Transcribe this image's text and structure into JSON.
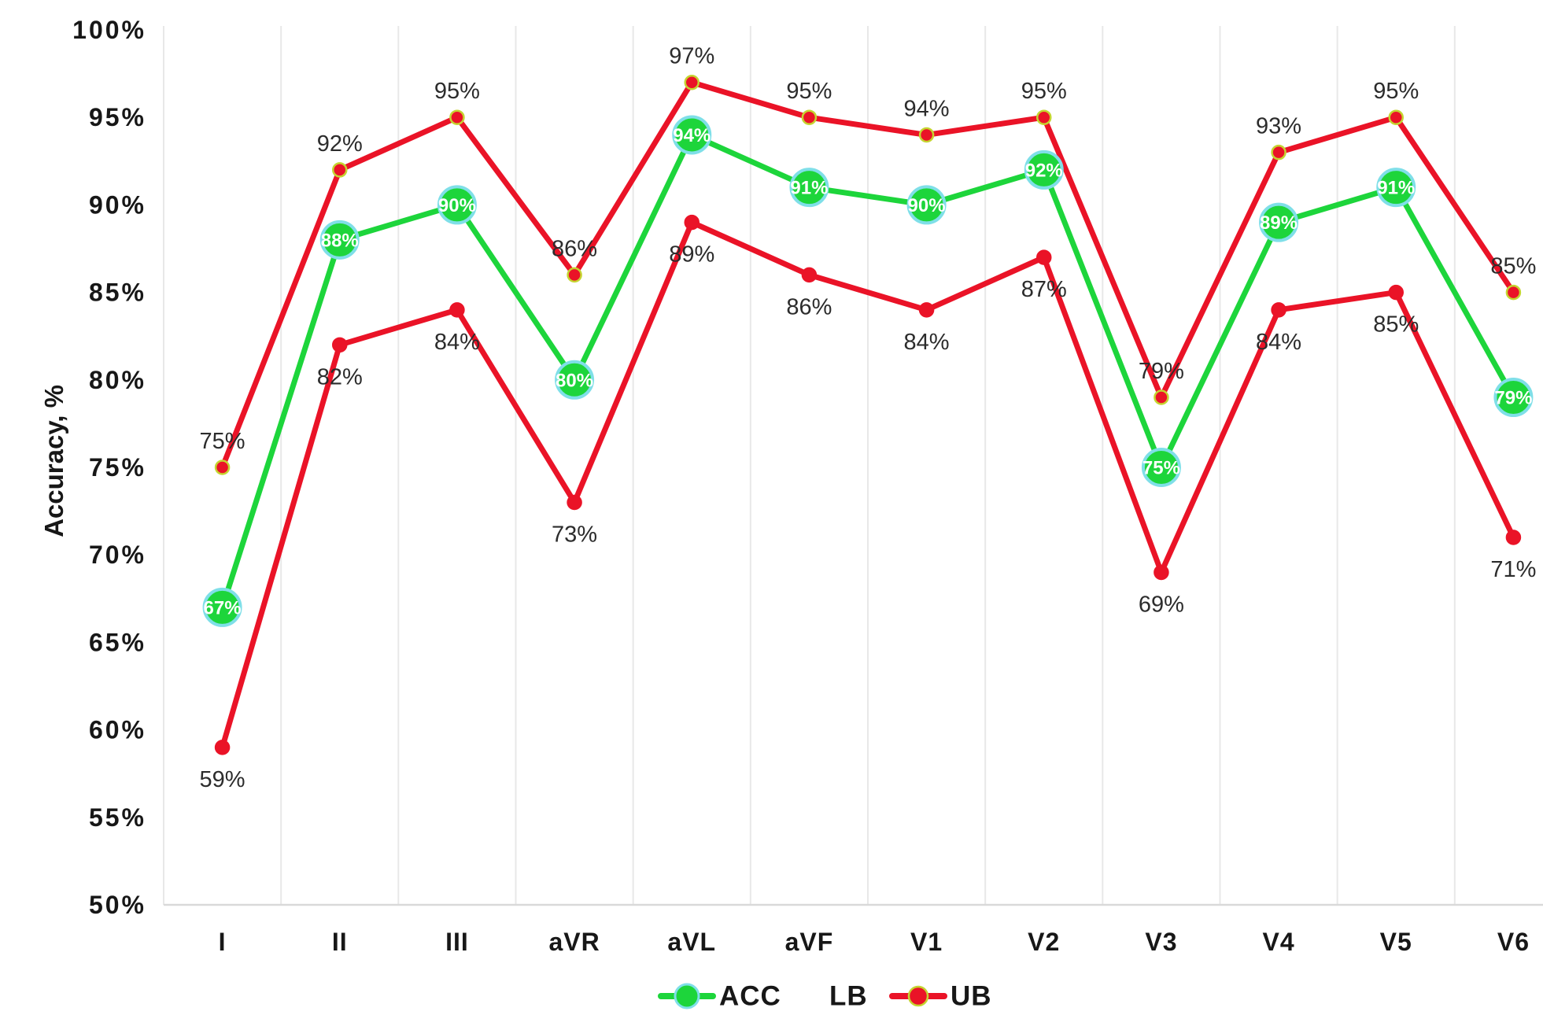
{
  "chart_data": {
    "type": "line",
    "title": "",
    "xlabel": "",
    "ylabel": "Accuracy, %",
    "ylim": [
      50,
      100
    ],
    "ytick_step": 5,
    "ytick_values": [
      50,
      55,
      60,
      65,
      70,
      75,
      80,
      85,
      90,
      95,
      100
    ],
    "ytick_labels": [
      "50%",
      "55%",
      "60%",
      "65%",
      "70%",
      "75%",
      "80%",
      "85%",
      "90%",
      "95%",
      "100%"
    ],
    "grid": "vertical-only",
    "legend_position": "bottom",
    "categories": [
      "I",
      "II",
      "III",
      "aVR",
      "aVL",
      "aVF",
      "V1",
      "V2",
      "V3",
      "V4",
      "V5",
      "V6"
    ],
    "series": [
      {
        "name": "LB",
        "values": [
          59,
          82,
          84,
          73,
          89,
          86,
          84,
          87,
          69,
          84,
          85,
          71
        ],
        "labels": [
          "59%",
          "82%",
          "84%",
          "73%",
          "89%",
          "86%",
          "84%",
          "87%",
          "69%",
          "84%",
          "85%",
          "71%"
        ],
        "color": "#ea1327",
        "marker_fill": "#ea1327",
        "marker_ring": "#ea1327",
        "label_style": "below"
      },
      {
        "name": "ACC",
        "values": [
          67,
          88,
          90,
          80,
          94,
          91,
          90,
          92,
          75,
          89,
          91,
          79
        ],
        "labels": [
          "67%",
          "88%",
          "90%",
          "80%",
          "94%",
          "91%",
          "90%",
          "92%",
          "75%",
          "89%",
          "91%",
          "79%"
        ],
        "color": "#1dd53b",
        "marker_fill": "#1dd53b",
        "marker_ring": "#7fdfe8",
        "label_style": "inside"
      },
      {
        "name": "UB",
        "values": [
          75,
          92,
          95,
          86,
          97,
          95,
          94,
          95,
          79,
          93,
          95,
          85
        ],
        "labels": [
          "75%",
          "92%",
          "95%",
          "86%",
          "97%",
          "95%",
          "94%",
          "95%",
          "79%",
          "93%",
          "95%",
          "85%"
        ],
        "color": "#ea1327",
        "marker_fill": "#ea1327",
        "marker_ring": "#c5d430",
        "label_style": "above"
      }
    ],
    "legend": [
      {
        "label": "ACC",
        "swatch": "line-circle",
        "color": "#1dd53b",
        "ring": "#7fdfe8"
      },
      {
        "label": "LB",
        "swatch": "none",
        "color": "#ea1327",
        "ring": "#ea1327"
      },
      {
        "label": "UB",
        "swatch": "line-circle",
        "color": "#ea1327",
        "ring": "#c5d430"
      }
    ],
    "colors": {
      "grid": "#e8e8e8",
      "axis_line": "#d9d9d9",
      "data_label_text": "#2c2c2c",
      "axis_text": "#171717",
      "marker_label_text": "#ffffff"
    }
  }
}
